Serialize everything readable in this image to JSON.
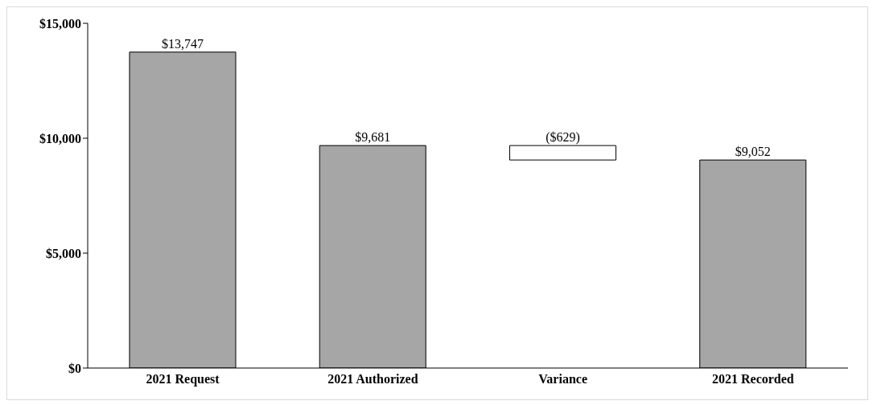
{
  "chart_data": {
    "type": "bar",
    "categories": [
      "2021 Request",
      "2021 Authorized",
      "Variance",
      "2021 Recorded"
    ],
    "values": [
      13747,
      9681,
      -629,
      9052
    ],
    "base": [
      0,
      0,
      9681,
      0
    ],
    "colors": [
      "#a6a6a6",
      "#a6a6a6",
      "#ffffff",
      "#a6a6a6"
    ],
    "value_labels": [
      "$13,747",
      "$9,681",
      "($629)",
      "$9,052"
    ],
    "ylim": [
      0,
      15000
    ],
    "yticks": [
      {
        "value": 0,
        "label": "$0"
      },
      {
        "value": 5000,
        "label": "$5,000"
      },
      {
        "value": 10000,
        "label": "$10,000"
      },
      {
        "value": 15000,
        "label": "$15,000"
      }
    ],
    "grid": false,
    "legend": false
  }
}
